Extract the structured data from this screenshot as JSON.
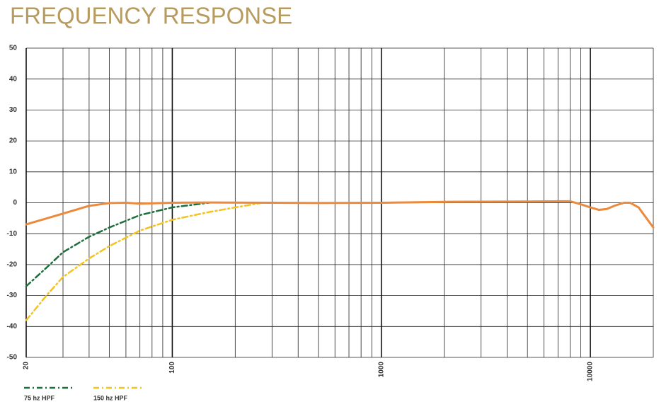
{
  "chart_data": {
    "type": "line",
    "title": "FREQUENCY RESPONSE",
    "xscale": "log",
    "legend": "bottom-left",
    "grid": true,
    "xlim": [
      20,
      20000
    ],
    "ylim": [
      -50,
      50
    ],
    "xticks": [
      20,
      100,
      1000,
      10000
    ],
    "xgrid": [
      30,
      40,
      50,
      60,
      70,
      80,
      90,
      200,
      300,
      400,
      500,
      600,
      700,
      800,
      900,
      2000,
      3000,
      4000,
      5000,
      6000,
      7000,
      8000,
      9000,
      20000
    ],
    "yticks": [
      50,
      40,
      30,
      20,
      10,
      0,
      -10,
      -20,
      -30,
      -40,
      -50
    ],
    "series": [
      {
        "name": "75 hz HPF",
        "color": "#1e6e3c",
        "style": "dashdot",
        "x": [
          20,
          25,
          30,
          40,
          50,
          70,
          100,
          150
        ],
        "values": [
          -27,
          -21,
          -16,
          -11,
          -8,
          -4,
          -1.5,
          0
        ]
      },
      {
        "name": "150 hz HPF",
        "color": "#f3c322",
        "style": "dashdot",
        "x": [
          20,
          25,
          30,
          40,
          50,
          70,
          100,
          150,
          200,
          270
        ],
        "values": [
          -38,
          -30,
          -24,
          -18,
          -14,
          -9,
          -5.5,
          -3,
          -1.5,
          0
        ]
      },
      {
        "color": "#eb8a3c",
        "style": "solid",
        "x": [
          20,
          30,
          40,
          50,
          60,
          70,
          100,
          150,
          300,
          500,
          1000,
          2000,
          5000,
          8000,
          9000,
          10000,
          11000,
          12000,
          13000,
          14500,
          15500,
          17000,
          20000
        ],
        "values": [
          -7,
          -3.5,
          -1,
          -0.1,
          0,
          -0.3,
          0,
          0.1,
          0,
          -0.1,
          0,
          0.3,
          0.4,
          0.5,
          -0.5,
          -1.5,
          -2.3,
          -2,
          -1,
          0,
          0,
          -1.5,
          -8
        ]
      }
    ]
  }
}
